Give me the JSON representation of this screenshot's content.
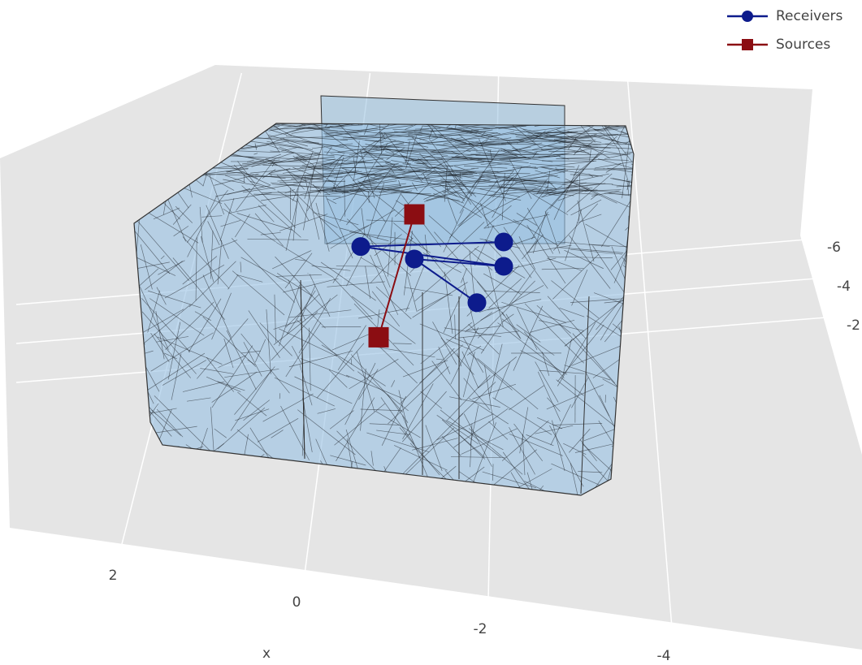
{
  "chart_data": {
    "type": "scatter3d",
    "xlabel": "x",
    "xticks": [
      2,
      0,
      -2,
      -4
    ],
    "yticks": [
      -6,
      -4,
      -2
    ],
    "series": [
      {
        "name": "Receivers",
        "color": "#0d1b8c",
        "marker": "circle",
        "x": [
          -2.0,
          -0.4,
          -2.0,
          -1.0,
          -1.7
        ],
        "y": [
          -2.6,
          -3.0,
          -2.0,
          -2.5,
          -1.2
        ],
        "z": [
          1.2,
          1.2,
          1.2,
          1.2,
          1.2
        ]
      },
      {
        "name": "Sources",
        "color": "#8b0d12",
        "marker": "square",
        "x": [
          -1.0,
          -0.6
        ],
        "y": [
          -3.3,
          -0.4
        ],
        "z": [
          1.5,
          1.5
        ]
      }
    ]
  }
}
